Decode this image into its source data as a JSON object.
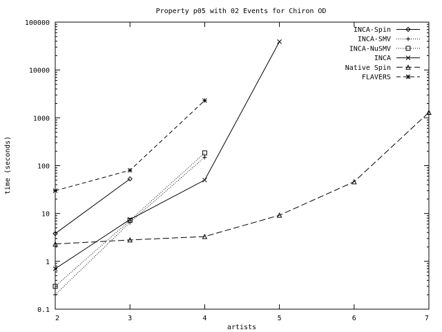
{
  "chart_data": {
    "type": "line",
    "title": "Property p05 with 02 Events for Chiron OD",
    "xlabel": "artists",
    "ylabel": "time (seconds)",
    "xlim": [
      2,
      7
    ],
    "ylim": [
      0.1,
      100000
    ],
    "y_scale": "log",
    "grid": false,
    "legend_position": "top-right",
    "x_ticks": [
      "2",
      "3",
      "4",
      "5",
      "6",
      "7"
    ],
    "y_ticks": [
      "0.1",
      "1",
      "10",
      "100",
      "1000",
      "10000",
      "100000"
    ],
    "series": [
      {
        "name": "INCA-Spin",
        "marker": "diamond",
        "dash": "solid",
        "x": [
          2,
          3
        ],
        "y": [
          3.8,
          53
        ]
      },
      {
        "name": "INCA-SMV",
        "marker": "plus",
        "dash": "dotted",
        "x": [
          2,
          3,
          4
        ],
        "y": [
          0.2,
          6.5,
          150
        ]
      },
      {
        "name": "INCA-NuSMV",
        "marker": "square",
        "dash": "dotted",
        "x": [
          2,
          3,
          4
        ],
        "y": [
          0.3,
          7.2,
          185
        ]
      },
      {
        "name": "INCA",
        "marker": "cross",
        "dash": "solid",
        "x": [
          2,
          3,
          4,
          5
        ],
        "y": [
          0.7,
          7.5,
          50,
          39000
        ]
      },
      {
        "name": "Native Spin",
        "marker": "triangle",
        "dash": "longdash",
        "x": [
          2,
          3,
          4,
          5,
          6,
          7
        ],
        "y": [
          2.3,
          2.8,
          3.3,
          9.2,
          46,
          1300
        ]
      },
      {
        "name": "FLAVERS",
        "marker": "star",
        "dash": "dashed",
        "x": [
          2,
          3,
          4
        ],
        "y": [
          30,
          80,
          2300
        ]
      }
    ]
  }
}
